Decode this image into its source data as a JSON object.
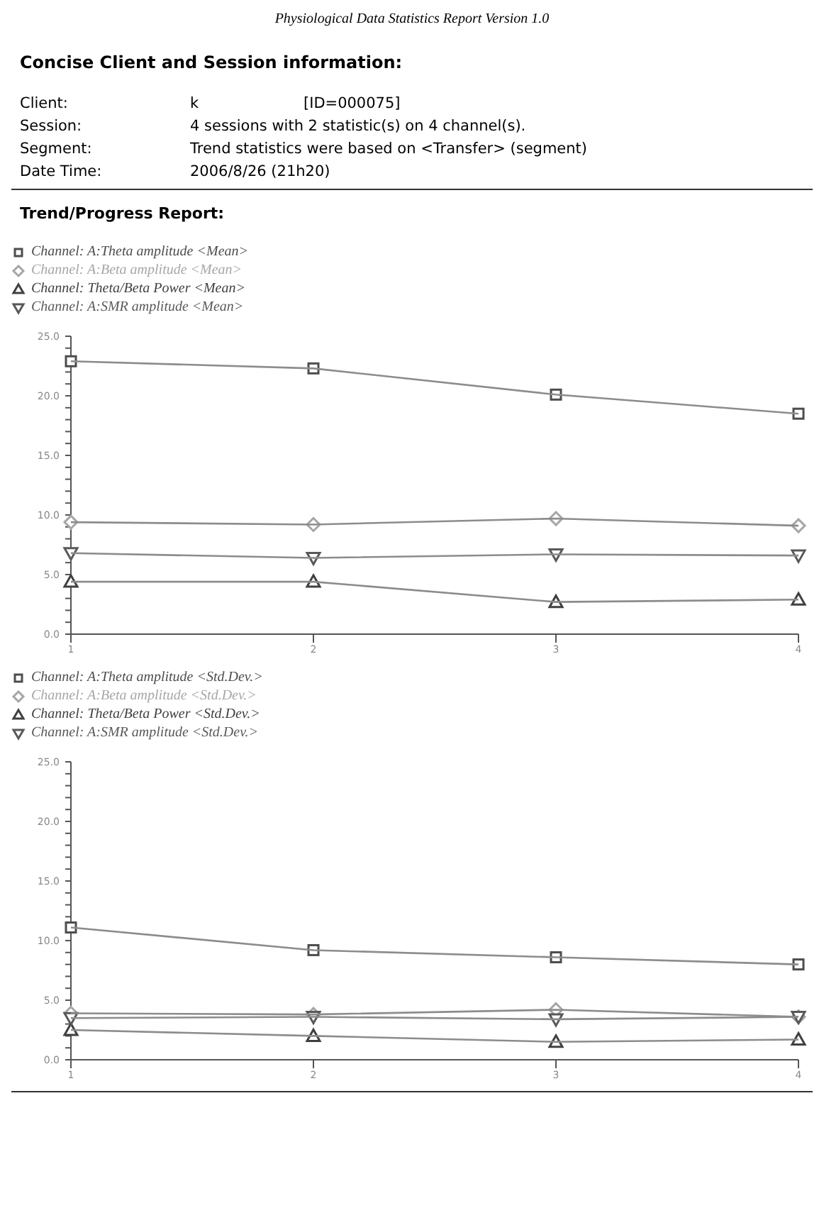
{
  "chart_data": [
    {
      "type": "line",
      "title": "Trend/Progress Report:",
      "annotations": [
        "Physiological Data Statistics Report Version 1.0",
        "Concise Client and Session information:",
        "Client:",
        "k",
        "[ID=000075]",
        "Session:",
        "4 sessions with 2 statistic(s) on 4 channel(s).",
        "Segment:",
        "Trend statistics were based on <Transfer> (segment)",
        "Date  Time:",
        "2006/8/26   (21h20)"
      ],
      "x": [
        1,
        2,
        3,
        4
      ],
      "xlim": [
        1,
        4
      ],
      "xticks": [
        1,
        2,
        3,
        4
      ],
      "ylim": [
        0,
        25
      ],
      "yticks": [
        {
          "value": 0,
          "label": "0.0"
        },
        {
          "value": 1,
          "label": null
        },
        {
          "value": 2,
          "label": null
        },
        {
          "value": 3,
          "label": null
        },
        {
          "value": 4,
          "label": null
        },
        {
          "value": 5,
          "label": "5.0"
        },
        {
          "value": 6,
          "label": null
        },
        {
          "value": 7,
          "label": null
        },
        {
          "value": 8,
          "label": null
        },
        {
          "value": 9,
          "label": null
        },
        {
          "value": 10,
          "label": "10.0"
        },
        {
          "value": 11,
          "label": null
        },
        {
          "value": 12,
          "label": null
        },
        {
          "value": 13,
          "label": null
        },
        {
          "value": 14,
          "label": null
        },
        {
          "value": 15,
          "label": "15.0"
        },
        {
          "value": 16,
          "label": null
        },
        {
          "value": 17,
          "label": null
        },
        {
          "value": 18,
          "label": null
        },
        {
          "value": 19,
          "label": null
        },
        {
          "value": 20,
          "label": "20.0"
        },
        {
          "value": 21,
          "label": null
        },
        {
          "value": 22,
          "label": null
        },
        {
          "value": 23,
          "label": null
        },
        {
          "value": 24,
          "label": null
        },
        {
          "value": 25,
          "label": "25.0"
        }
      ],
      "legend": "top left",
      "line_style": "solid",
      "series": [
        {
          "name": "Channel: A:Theta amplitude <Mean>",
          "color": "#4d4d4d",
          "marker": "square",
          "values": [
            22.9,
            22.3,
            20.1,
            18.5
          ]
        },
        {
          "name": "Channel: A:Beta amplitude <Mean>",
          "color": "#a6a6a6",
          "marker": "diamond",
          "values": [
            9.4,
            9.2,
            9.7,
            9.1
          ]
        },
        {
          "name": "Channel: Theta/Beta Power <Mean>",
          "color": "#404040",
          "marker": "triangle",
          "values": [
            4.4,
            4.4,
            2.7,
            2.9
          ]
        },
        {
          "name": "Channel: A:SMR amplitude <Mean>",
          "color": "#595959",
          "marker": "triangle-down",
          "values": [
            6.8,
            6.4,
            6.7,
            6.6
          ]
        }
      ]
    },
    {
      "type": "line",
      "x": [
        1,
        2,
        3,
        4
      ],
      "xlim": [
        1,
        4
      ],
      "xticks": [
        1,
        2,
        3,
        4
      ],
      "ylim": [
        0,
        25
      ],
      "yticks": [
        {
          "value": 0,
          "label": "0.0"
        },
        {
          "value": 1,
          "label": null
        },
        {
          "value": 2,
          "label": null
        },
        {
          "value": 3,
          "label": null
        },
        {
          "value": 4,
          "label": null
        },
        {
          "value": 5,
          "label": "5.0"
        },
        {
          "value": 6,
          "label": null
        },
        {
          "value": 7,
          "label": null
        },
        {
          "value": 8,
          "label": null
        },
        {
          "value": 9,
          "label": null
        },
        {
          "value": 10,
          "label": "10.0"
        },
        {
          "value": 11,
          "label": null
        },
        {
          "value": 12,
          "label": null
        },
        {
          "value": 13,
          "label": null
        },
        {
          "value": 14,
          "label": null
        },
        {
          "value": 15,
          "label": "15.0"
        },
        {
          "value": 16,
          "label": null
        },
        {
          "value": 17,
          "label": null
        },
        {
          "value": 18,
          "label": null
        },
        {
          "value": 19,
          "label": null
        },
        {
          "value": 20,
          "label": "20.0"
        },
        {
          "value": 21,
          "label": null
        },
        {
          "value": 22,
          "label": null
        },
        {
          "value": 23,
          "label": null
        },
        {
          "value": 24,
          "label": null
        },
        {
          "value": 25,
          "label": "25.0"
        }
      ],
      "legend": "top left",
      "line_style": "solid",
      "series": [
        {
          "name": "Channel: A:Theta amplitude <Std.Dev.>",
          "color": "#4d4d4d",
          "marker": "square",
          "values": [
            11.1,
            9.2,
            8.6,
            8.0
          ]
        },
        {
          "name": "Channel: A:Beta amplitude <Std.Dev.>",
          "color": "#a6a6a6",
          "marker": "diamond",
          "values": [
            3.9,
            3.8,
            4.2,
            3.6
          ]
        },
        {
          "name": "Channel: Theta/Beta Power <Std.Dev.>",
          "color": "#404040",
          "marker": "triangle",
          "values": [
            2.5,
            2.0,
            1.5,
            1.7
          ]
        },
        {
          "name": "Channel: A:SMR amplitude <Std.Dev.>",
          "color": "#595959",
          "marker": "triangle-down",
          "values": [
            3.5,
            3.6,
            3.4,
            3.6
          ]
        }
      ]
    }
  ]
}
